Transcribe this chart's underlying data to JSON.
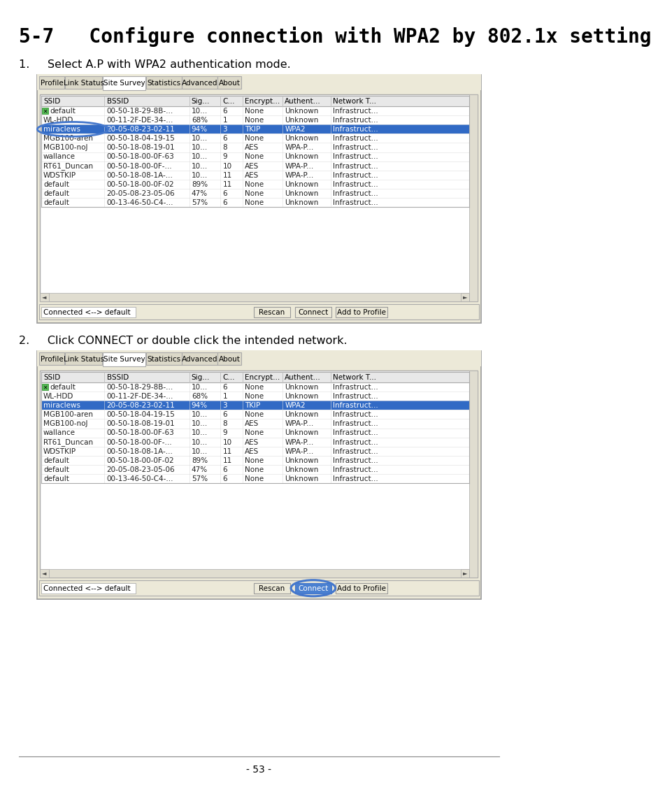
{
  "title": "5-7   Configure connection with WPA2 by 802.1x setting",
  "title_size": 20,
  "step1_text": "1.     Select A.P with WPA2 authentication mode.",
  "step2_text": "2.     Click CONNECT or double click the intended network.",
  "page_number": "- 53 -",
  "background_color": "#ffffff",
  "tabs": [
    "Profile",
    "Link Status",
    "Site Survey",
    "Statistics",
    "Advanced",
    "About"
  ],
  "active_tab": "Site Survey",
  "table_headers": [
    "SSID",
    "BSSID",
    "Sig...",
    "C...",
    "Encrypt...",
    "Authent...",
    "Network T..."
  ],
  "table_rows": [
    [
      "default",
      "00-50-18-29-8B-...",
      "10...",
      "6",
      "None",
      "Unknown",
      "Infrastruct..."
    ],
    [
      "WL-HDD",
      "00-11-2F-DE-34-...",
      "68%",
      "1",
      "None",
      "Unknown",
      "Infrastruct..."
    ],
    [
      "miraclews",
      "20-05-08-23-02-11",
      "94%",
      "3",
      "TKIP",
      "WPA2",
      "Infrastruct..."
    ],
    [
      "MGB100-aren",
      "00-50-18-04-19-15",
      "10...",
      "6",
      "None",
      "Unknown",
      "Infrastruct..."
    ],
    [
      "MGB100-noJ",
      "00-50-18-08-19-01",
      "10...",
      "8",
      "AES",
      "WPA-P...",
      "Infrastruct..."
    ],
    [
      "wallance",
      "00-50-18-00-0F-63",
      "10...",
      "9",
      "None",
      "Unknown",
      "Infrastruct..."
    ],
    [
      "RT61_Duncan",
      "00-50-18-00-0F-...",
      "10...",
      "10",
      "AES",
      "WPA-P...",
      "Infrastruct..."
    ],
    [
      "WDSTKIP",
      "00-50-18-08-1A-...",
      "10...",
      "11",
      "AES",
      "WPA-P...",
      "Infrastruct..."
    ],
    [
      "default",
      "00-50-18-00-0F-02",
      "89%",
      "11",
      "None",
      "Unknown",
      "Infrastruct..."
    ],
    [
      "default",
      "20-05-08-23-05-06",
      "47%",
      "6",
      "None",
      "Unknown",
      "Infrastruct..."
    ],
    [
      "default",
      "00-13-46-50-C4-...",
      "57%",
      "6",
      "None",
      "Unknown",
      "Infrastruct..."
    ]
  ],
  "highlighted_row": 2,
  "highlight_color": "#316ac5",
  "highlight_text_color": "#ffffff",
  "bottom_bar_text": "Connected <--> default",
  "buttons": [
    "Rescan",
    "Connect",
    "Add to Profile"
  ],
  "connect_btn_idx": 1,
  "panel_bg": "#ece9d8",
  "panel_border": "#888888",
  "inner_bg": "#ffffff",
  "header_bg": "#f0f0f0",
  "tab_active_bg": "#ffffff",
  "tab_inactive_bg": "#dbd8c8",
  "circle_color": "#4477cc",
  "scroll_bg": "#e0ddd0"
}
